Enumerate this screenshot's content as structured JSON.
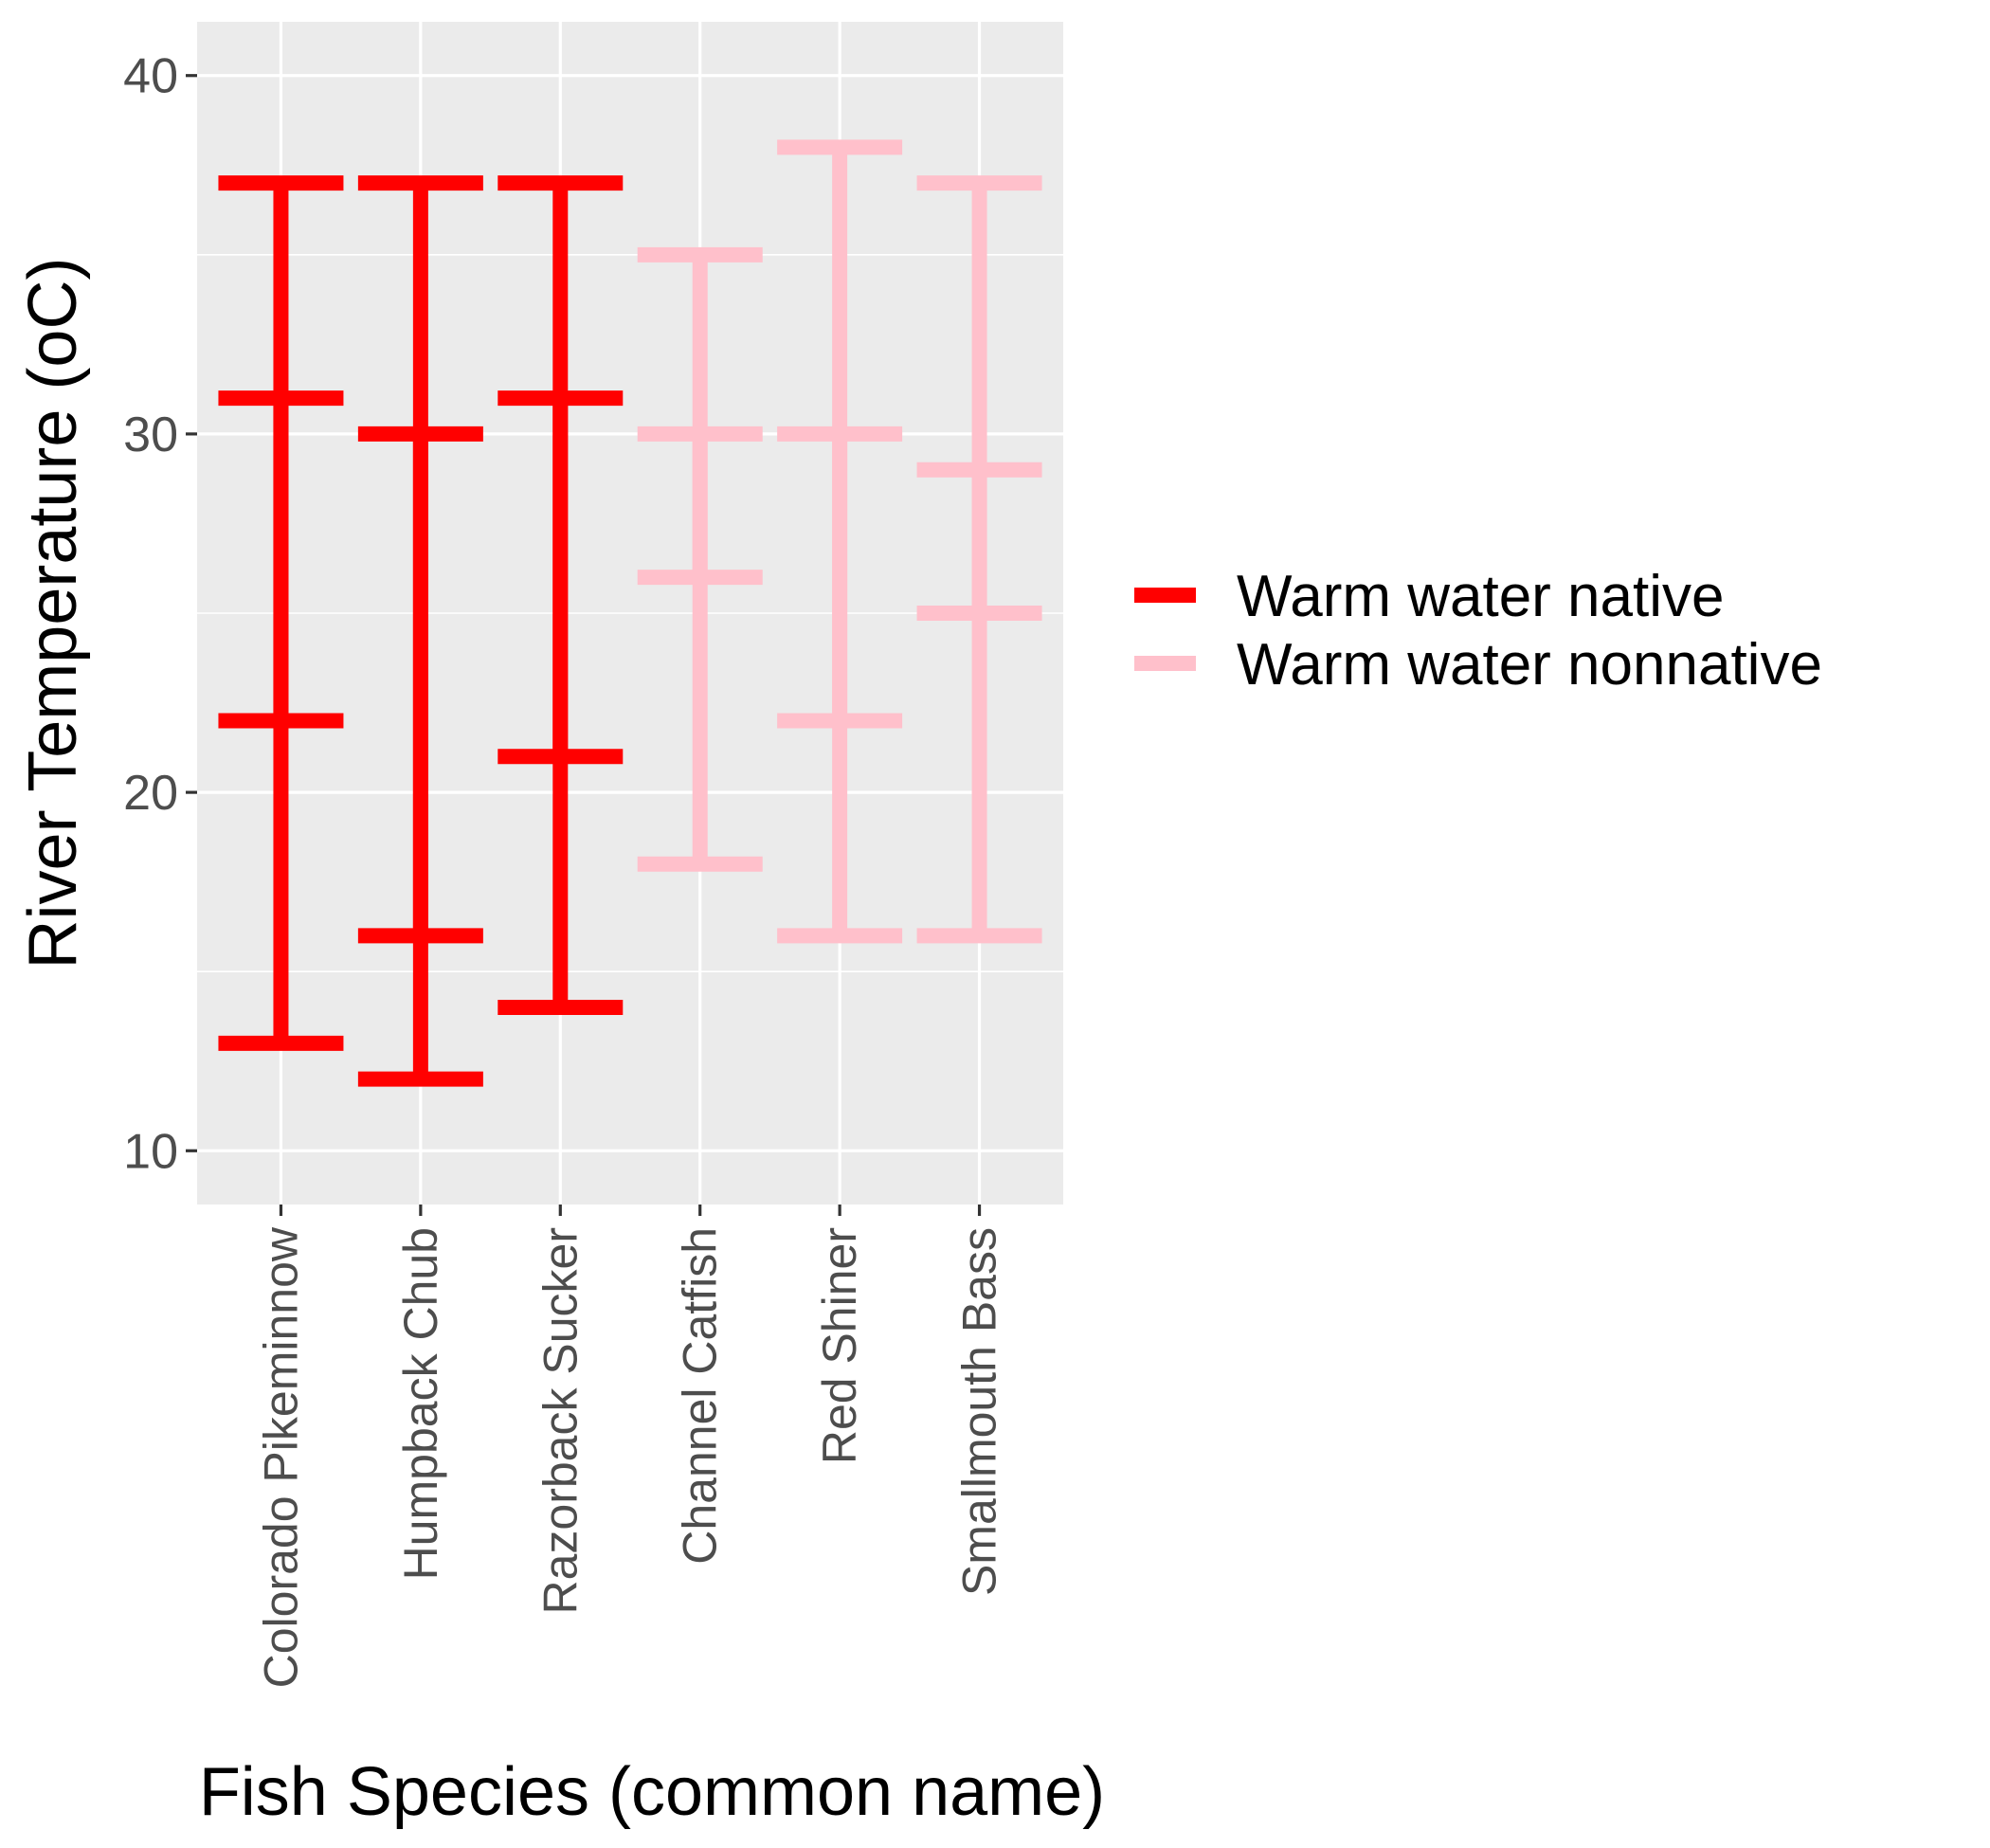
{
  "chart_data": {
    "type": "errorbar",
    "title": "",
    "xlabel": "Fish Species (common name)",
    "ylabel": "River Temperature (oC)",
    "ylim": [
      8.5,
      41.5
    ],
    "yticks": [
      10,
      20,
      30,
      40
    ],
    "grid": true,
    "legend_position": "right",
    "categories": [
      "Colorado Pikeminnow",
      "Humpback Chub",
      "Razorback Sucker",
      "Channel Catfish",
      "Red Shiner",
      "Smallmouth Bass"
    ],
    "series": [
      {
        "name": "Warm water native",
        "color": "#ff0000",
        "points": [
          {
            "category": "Colorado Pikeminnow",
            "bars": [
              [
                13,
                37
              ],
              [
                22,
                31
              ]
            ]
          },
          {
            "category": "Humpback Chub",
            "bars": [
              [
                12,
                37
              ],
              [
                16,
                30
              ]
            ]
          },
          {
            "category": "Razorback Sucker",
            "bars": [
              [
                14,
                37
              ],
              [
                21,
                31
              ]
            ]
          }
        ]
      },
      {
        "name": "Warm water nonnative",
        "color": "#ffc0cb",
        "points": [
          {
            "category": "Channel Catfish",
            "bars": [
              [
                18,
                35
              ],
              [
                26,
                30
              ]
            ]
          },
          {
            "category": "Red Shiner",
            "bars": [
              [
                16,
                38
              ],
              [
                22,
                30
              ]
            ]
          },
          {
            "category": "Smallmouth Bass",
            "bars": [
              [
                16,
                37
              ],
              [
                25,
                29
              ]
            ]
          }
        ]
      }
    ]
  }
}
